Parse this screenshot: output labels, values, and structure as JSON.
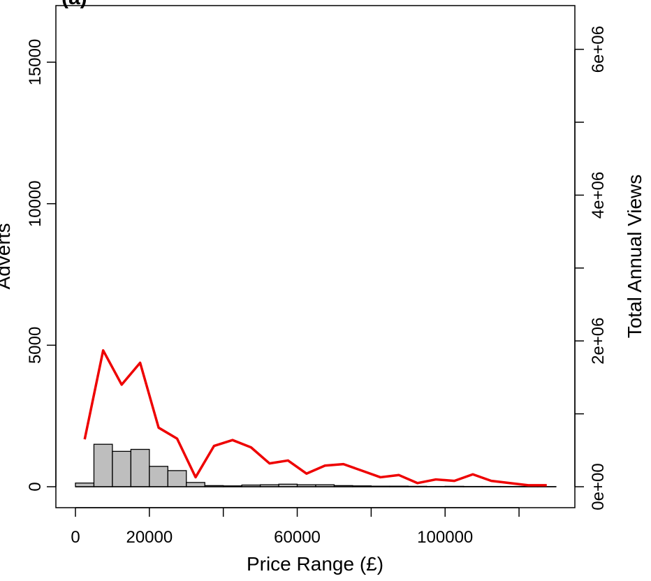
{
  "panel_tag": "(a)",
  "chart_data": {
    "type": "bar",
    "title": "",
    "xlabel": "Price Range (£)",
    "ylabel": "Adverts",
    "ylabel_right": "Total Annual Views",
    "xlim": [
      0,
      130000
    ],
    "ylim": [
      0,
      17000
    ],
    "ylim_right": [
      0,
      6600000
    ],
    "x_ticks": [
      {
        "value": 0,
        "label": "0"
      },
      {
        "value": 20000,
        "label": "20000"
      },
      {
        "value": 40000,
        "label": ""
      },
      {
        "value": 60000,
        "label": "60000"
      },
      {
        "value": 80000,
        "label": ""
      },
      {
        "value": 100000,
        "label": "100000"
      },
      {
        "value": 120000,
        "label": ""
      }
    ],
    "y_ticks": [
      {
        "value": 0,
        "label": "0"
      },
      {
        "value": 5000,
        "label": "5000"
      },
      {
        "value": 10000,
        "label": "10000"
      },
      {
        "value": 15000,
        "label": "15000"
      }
    ],
    "y_ticks_right": [
      {
        "value": 0,
        "label": "0e+00"
      },
      {
        "value": 1000000,
        "label": ""
      },
      {
        "value": 2000000,
        "label": "2e+06"
      },
      {
        "value": 3000000,
        "label": ""
      },
      {
        "value": 4000000,
        "label": "4e+06"
      },
      {
        "value": 5000000,
        "label": ""
      },
      {
        "value": 6000000,
        "label": "6e+06"
      }
    ],
    "bin_width": 5000,
    "histogram": {
      "bin_starts": [
        0,
        5000,
        10000,
        15000,
        20000,
        25000,
        30000,
        35000,
        40000,
        45000,
        50000,
        55000,
        60000,
        65000,
        70000,
        75000,
        80000,
        85000,
        90000,
        95000,
        100000,
        105000,
        110000,
        115000,
        120000,
        125000
      ],
      "counts": [
        130,
        1500,
        1250,
        1320,
        720,
        570,
        150,
        40,
        30,
        60,
        70,
        90,
        70,
        70,
        40,
        30,
        20,
        20,
        15,
        10,
        15,
        10,
        10,
        10,
        10,
        5
      ]
    },
    "series": [
      {
        "name": "Total Annual Views",
        "axis": "right",
        "color": "#ee0000",
        "x": [
          2500,
          7500,
          12500,
          17500,
          22500,
          27500,
          32500,
          37500,
          42500,
          47500,
          52500,
          57500,
          62500,
          67500,
          72500,
          77500,
          82500,
          87500,
          92500,
          97500,
          102500,
          107500,
          112500,
          117500,
          122500,
          127500
        ],
        "values": [
          650000,
          1870000,
          1400000,
          1700000,
          810000,
          660000,
          130000,
          560000,
          640000,
          540000,
          320000,
          360000,
          180000,
          290000,
          310000,
          220000,
          130000,
          160000,
          50000,
          100000,
          80000,
          170000,
          80000,
          50000,
          20000,
          20000
        ]
      }
    ],
    "bar_fill": "#bebebe",
    "bar_stroke": "#000000"
  }
}
